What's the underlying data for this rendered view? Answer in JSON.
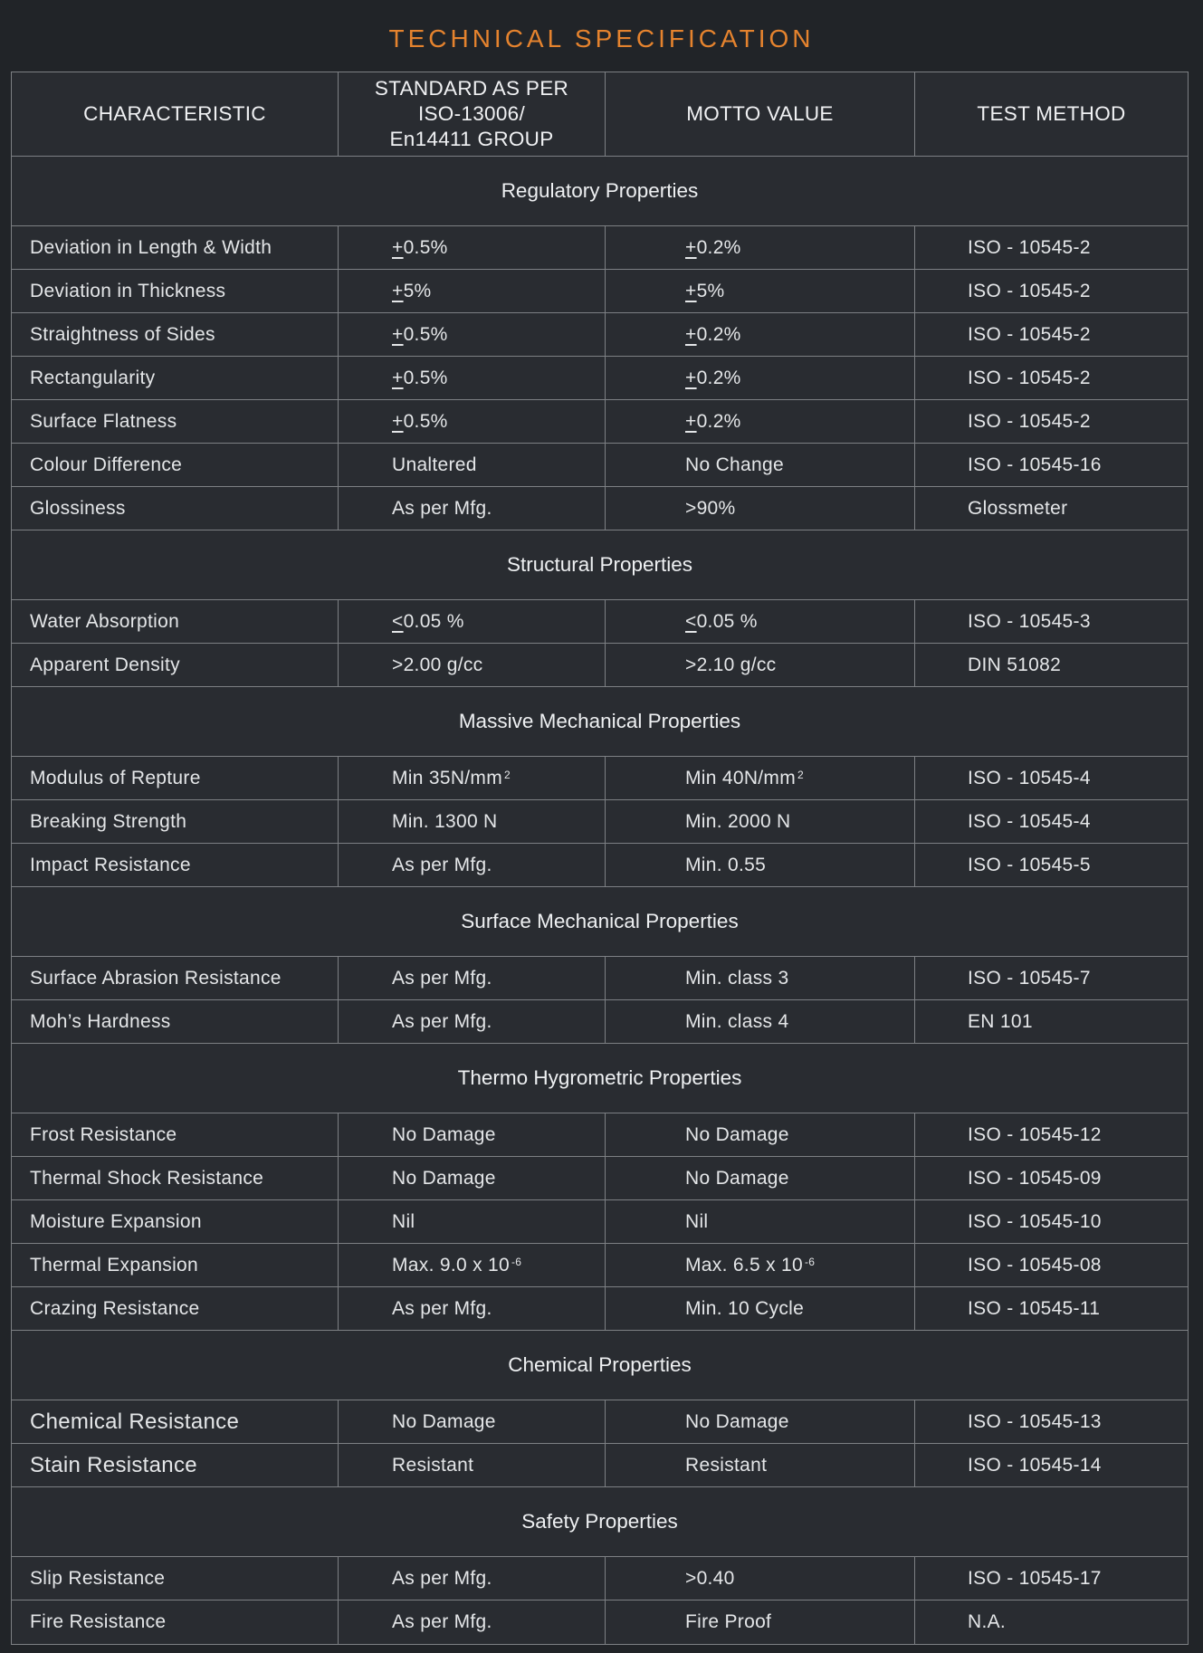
{
  "title": "TECHNICAL SPECIFICATION",
  "colors": {
    "accent": "#E5832E",
    "page_background": "#212428",
    "table_background": "#292C31",
    "grid_line": "#7D8084",
    "text": "#E4E6E8"
  },
  "table": {
    "headers": [
      "CHARACTERISTIC",
      "STANDARD AS PER{br}ISO-13006/{br}En14411 GROUP",
      "MOTTO VALUE",
      "TEST METHOD"
    ],
    "sections": [
      {
        "name": "Regulatory Properties",
        "rows": [
          {
            "characteristic": "Deviation in Length & Width",
            "standard": "{u}+{/u}0.5%",
            "motto": "{u}+{/u}0.2%",
            "method": "ISO - 10545-2"
          },
          {
            "characteristic": "Deviation in Thickness",
            "standard": "{u}+{/u}5%",
            "motto": "{u}+{/u}5%",
            "method": "ISO - 10545-2"
          },
          {
            "characteristic": "Straightness of Sides",
            "standard": "{u}+{/u}0.5%",
            "motto": "{u}+{/u}0.2%",
            "method": "ISO - 10545-2"
          },
          {
            "characteristic": "Rectangularity",
            "standard": "{u}+{/u}0.5%",
            "motto": "{u}+{/u}0.2%",
            "method": "ISO - 10545-2"
          },
          {
            "characteristic": "Surface Flatness",
            "standard": "{u}+{/u}0.5%",
            "motto": "{u}+{/u}0.2%",
            "method": "ISO - 10545-2"
          },
          {
            "characteristic": "Colour Difference",
            "standard": "Unaltered",
            "motto": "No Change",
            "method": "ISO - 10545-16"
          },
          {
            "characteristic": "Glossiness",
            "standard": "As per Mfg.",
            "motto": ">90%",
            "method": "Glossmeter"
          }
        ]
      },
      {
        "name": "Structural Properties",
        "rows": [
          {
            "characteristic": "Water Absorption",
            "standard": "{u}<{/u}0.05 %",
            "motto": "{u}<{/u}0.05 %",
            "method": "ISO - 10545-3"
          },
          {
            "characteristic": "Apparent Density",
            "standard": ">2.00 g/cc",
            "motto": ">2.10 g/cc",
            "method": "DIN 51082"
          }
        ]
      },
      {
        "name": "Massive Mechanical Properties",
        "rows": [
          {
            "characteristic": "Modulus of Repture",
            "standard": "Min 35N/mm{sup}2{/sup}",
            "motto": "Min 40N/mm{sup}2{/sup}",
            "method": "ISO - 10545-4"
          },
          {
            "characteristic": "Breaking Strength",
            "standard": "Min. 1300 N",
            "motto": "Min. 2000 N",
            "method": "ISO - 10545-4"
          },
          {
            "characteristic": "Impact Resistance",
            "standard": "As per Mfg.",
            "motto": "Min. 0.55",
            "method": "ISO - 10545-5"
          }
        ]
      },
      {
        "name": "Surface Mechanical Properties",
        "rows": [
          {
            "characteristic": "Surface Abrasion Resistance",
            "standard": "As per Mfg.",
            "motto": "Min. class 3",
            "method": "ISO - 10545-7"
          },
          {
            "characteristic": "Moh’s Hardness",
            "standard": "As per Mfg.",
            "motto": "Min. class 4",
            "method": "EN 101"
          }
        ]
      },
      {
        "name": "Thermo Hygrometric Properties",
        "rows": [
          {
            "characteristic": "Frost Resistance",
            "standard": "No Damage",
            "motto": "No Damage",
            "method": "ISO - 10545-12"
          },
          {
            "characteristic": "Thermal Shock Resistance",
            "standard": "No Damage",
            "motto": "No Damage",
            "method": "ISO - 10545-09"
          },
          {
            "characteristic": "Moisture Expansion",
            "standard": "Nil",
            "motto": "Nil",
            "method": "ISO - 10545-10"
          },
          {
            "characteristic": "Thermal Expansion",
            "standard": "Max. 9.0 x 10 {sup}-6{/sup}",
            "motto": "Max. 6.5 x 10 {sup}-6{/sup}",
            "method": "ISO - 10545-08"
          },
          {
            "characteristic": "Crazing Resistance",
            "standard": "As per Mfg.",
            "motto": "Min. 10 Cycle",
            "method": "ISO - 10545-11"
          }
        ]
      },
      {
        "name": "Chemical Properties",
        "rows": [
          {
            "characteristic": "Chemical Resistance",
            "standard": "No Damage",
            "motto": "No Damage",
            "method": "ISO - 10545-13"
          },
          {
            "characteristic": "Stain Resistance",
            "standard": "Resistant",
            "motto": "Resistant",
            "method": "ISO - 10545-14"
          }
        ]
      },
      {
        "name": "Safety Properties",
        "rows": [
          {
            "characteristic": "Slip Resistance",
            "standard": "As per Mfg.",
            "motto": ">0.40",
            "method": "ISO - 10545-17"
          },
          {
            "characteristic": "Fire Resistance",
            "standard": "As per Mfg.",
            "motto": "Fire Proof",
            "method": "N.A."
          }
        ]
      }
    ]
  }
}
